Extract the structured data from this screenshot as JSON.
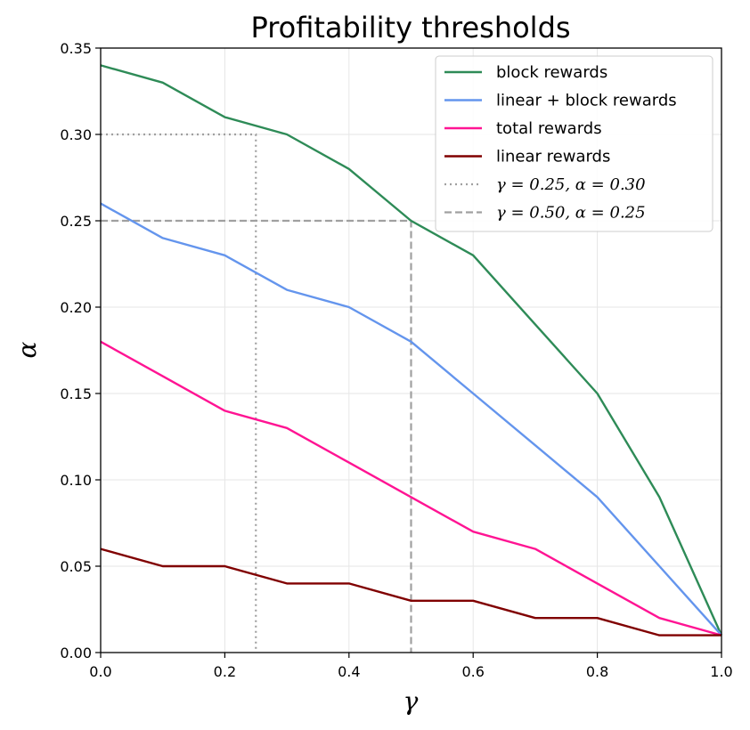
{
  "chart_data": {
    "type": "line",
    "title": "Profitability thresholds",
    "xlabel": "γ",
    "ylabel": "α",
    "xlim": [
      0,
      1
    ],
    "ylim": [
      0,
      0.35
    ],
    "xticks": [
      "0.0",
      "0.2",
      "0.4",
      "0.6",
      "0.8",
      "1.0"
    ],
    "yticks": [
      "0.00",
      "0.05",
      "0.10",
      "0.15",
      "0.20",
      "0.25",
      "0.30",
      "0.35"
    ],
    "grid": true,
    "legend_position": "top-right",
    "x": [
      0.0,
      0.1,
      0.2,
      0.3,
      0.4,
      0.5,
      0.6,
      0.7,
      0.8,
      0.9,
      1.0
    ],
    "series": [
      {
        "name": "block rewards",
        "color": "#2e8b57",
        "values": [
          0.34,
          0.33,
          0.31,
          0.3,
          0.28,
          0.25,
          0.23,
          0.19,
          0.15,
          0.09,
          0.01
        ]
      },
      {
        "name": "linear + block rewards",
        "color": "#6495ed",
        "values": [
          0.26,
          0.24,
          0.23,
          0.21,
          0.2,
          0.18,
          0.15,
          0.12,
          0.09,
          0.05,
          0.01
        ]
      },
      {
        "name": "total rewards",
        "color": "#ff1493",
        "values": [
          0.18,
          0.16,
          0.14,
          0.13,
          0.11,
          0.09,
          0.07,
          0.06,
          0.04,
          0.02,
          0.01
        ]
      },
      {
        "name": "linear rewards",
        "color": "#800000",
        "values": [
          0.06,
          0.05,
          0.05,
          0.04,
          0.04,
          0.03,
          0.03,
          0.02,
          0.02,
          0.01,
          0.01
        ]
      }
    ],
    "reference_lines": [
      {
        "label": "γ = 0.25, α = 0.30",
        "gamma": 0.25,
        "alpha": 0.3,
        "style": "dotted",
        "color": "#a0a0a0"
      },
      {
        "label": "γ = 0.50, α = 0.25",
        "gamma": 0.5,
        "alpha": 0.25,
        "style": "dashed",
        "color": "#a0a0a0"
      }
    ]
  }
}
